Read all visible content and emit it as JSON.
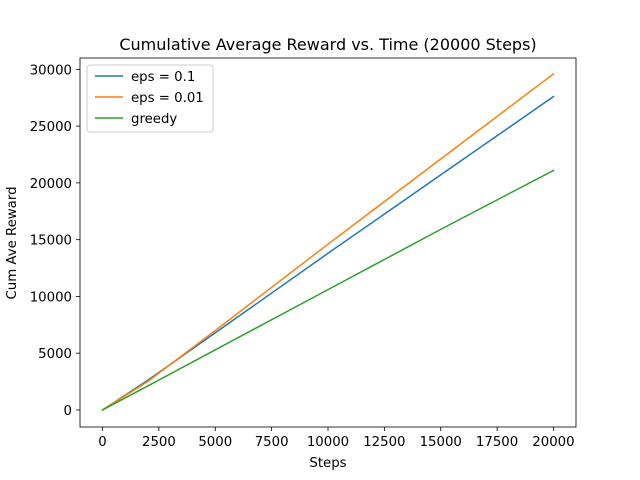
{
  "chart_data": {
    "type": "line",
    "title": "Cumulative Average Reward vs. Time (20000 Steps)",
    "xlabel": "Steps",
    "ylabel": "Cum Ave Reward",
    "xlim": [
      -1000,
      21000
    ],
    "ylim": [
      -1500,
      31000
    ],
    "xticks": [
      0,
      2500,
      5000,
      7500,
      10000,
      12500,
      15000,
      17500,
      20000
    ],
    "yticks": [
      0,
      5000,
      10000,
      15000,
      20000,
      25000,
      30000
    ],
    "grid": false,
    "legend_position": "upper-left",
    "series": [
      {
        "name": "eps = 0.1",
        "color": "#1f77b4",
        "x": [
          0,
          2000,
          5000,
          10000,
          15000,
          20000
        ],
        "y": [
          0,
          2600,
          6800,
          13800,
          20700,
          27600
        ]
      },
      {
        "name": "eps = 0.01",
        "color": "#ff7f0e",
        "x": [
          0,
          2000,
          5000,
          10000,
          15000,
          20000
        ],
        "y": [
          0,
          2500,
          7000,
          14600,
          22100,
          29600
        ]
      },
      {
        "name": "greedy",
        "color": "#2ca02c",
        "x": [
          0,
          2000,
          5000,
          10000,
          15000,
          20000
        ],
        "y": [
          0,
          2100,
          5300,
          10600,
          15900,
          21100
        ]
      }
    ]
  }
}
